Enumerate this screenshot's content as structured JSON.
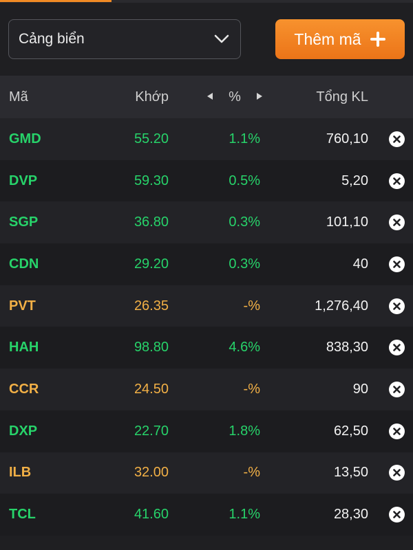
{
  "toolbar": {
    "watchlist_select": "Cảng biển",
    "add_button_label": "Thêm mã"
  },
  "table": {
    "headers": {
      "code": "Mã",
      "price": "Khớp",
      "pct": "%",
      "volume": "Tổng KL"
    },
    "rows": [
      {
        "code": "GMD",
        "price": "55.20",
        "pct": "1.1%",
        "volume": "760,10",
        "status": "up"
      },
      {
        "code": "DVP",
        "price": "59.30",
        "pct": "0.5%",
        "volume": "5,20",
        "status": "up"
      },
      {
        "code": "SGP",
        "price": "36.80",
        "pct": "0.3%",
        "volume": "101,10",
        "status": "up"
      },
      {
        "code": "CDN",
        "price": "29.20",
        "pct": "0.3%",
        "volume": "40",
        "status": "up"
      },
      {
        "code": "PVT",
        "price": "26.35",
        "pct": "-%",
        "volume": "1,276,40",
        "status": "ref"
      },
      {
        "code": "HAH",
        "price": "98.80",
        "pct": "4.6%",
        "volume": "838,30",
        "status": "up"
      },
      {
        "code": "CCR",
        "price": "24.50",
        "pct": "-%",
        "volume": "90",
        "status": "ref"
      },
      {
        "code": "DXP",
        "price": "22.70",
        "pct": "1.8%",
        "volume": "62,50",
        "status": "up"
      },
      {
        "code": "ILB",
        "price": "32.00",
        "pct": "-%",
        "volume": "13,50",
        "status": "ref"
      },
      {
        "code": "TCL",
        "price": "41.60",
        "pct": "1.1%",
        "volume": "28,30",
        "status": "up"
      }
    ]
  },
  "colors": {
    "accent": "#f08a24",
    "up": "#27d36a",
    "reference": "#f2b046",
    "background": "#1f1f22"
  },
  "icons": {
    "select_chevron": "chevron-down-icon",
    "add": "plus-icon",
    "sort_prev": "caret-left-icon",
    "sort_next": "caret-right-icon",
    "remove": "close-circle-icon"
  }
}
